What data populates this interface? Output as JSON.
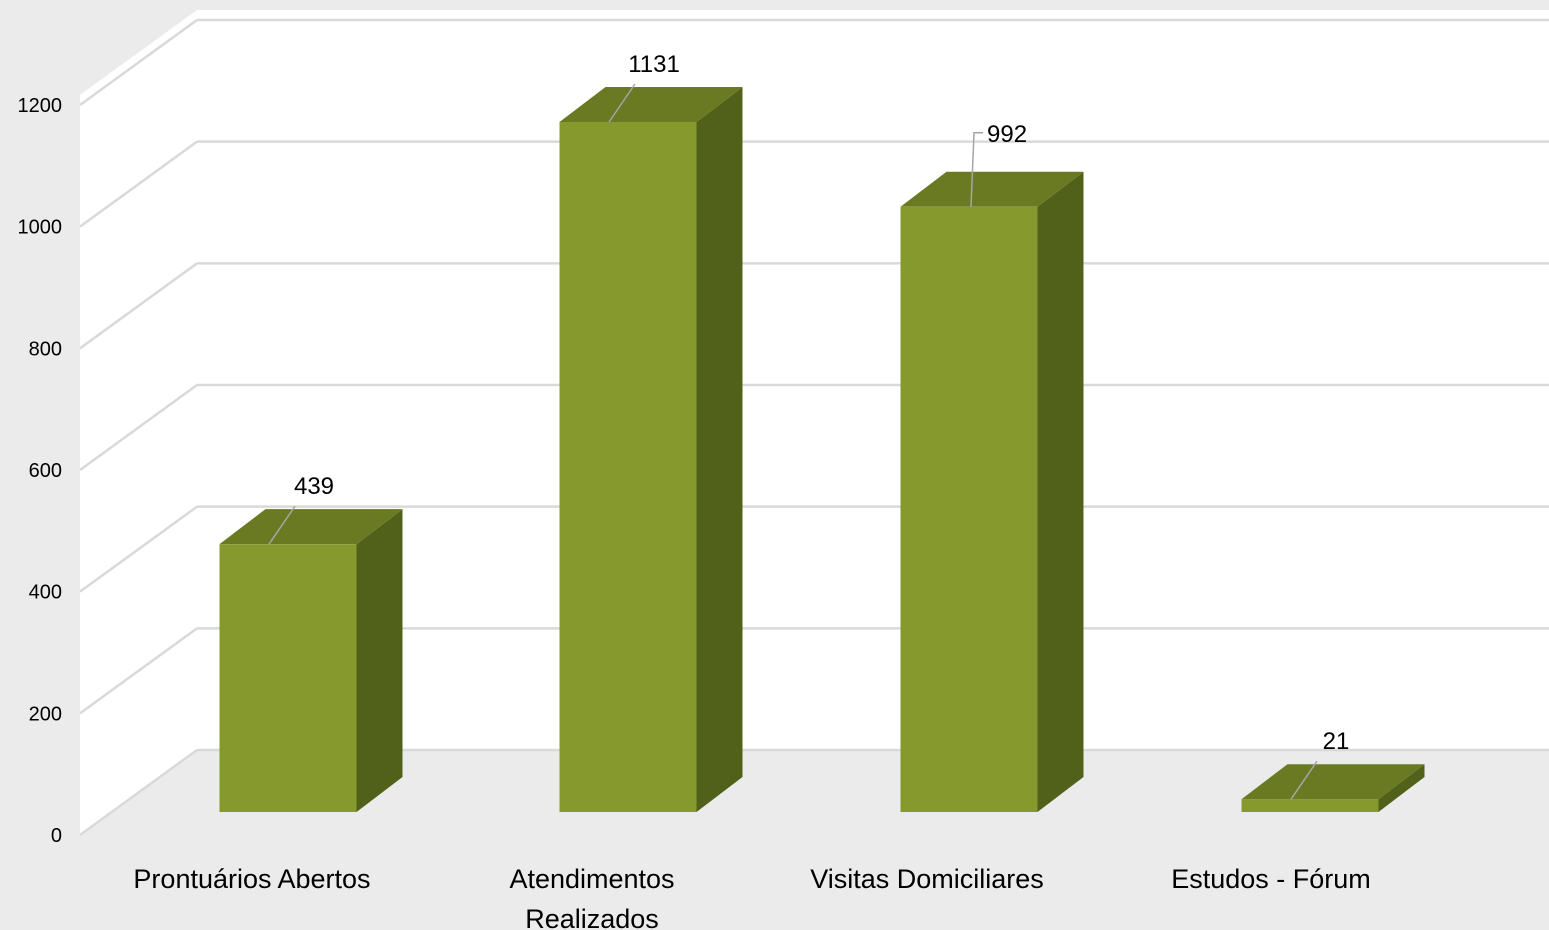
{
  "chart_data": {
    "type": "bar",
    "style": "3d-column",
    "categories": [
      "Prontuários Abertos",
      "Atendimentos Realizados",
      "Visitas Domiciliares",
      "Estudos - Fórum"
    ],
    "category_lines": [
      [
        "Prontuários Abertos"
      ],
      [
        "Atendimentos",
        "Realizados"
      ],
      [
        "Visitas Domiciliares"
      ],
      [
        "Estudos - Fórum"
      ]
    ],
    "values": [
      439,
      1131,
      992,
      21
    ],
    "data_labels": [
      "439",
      "1131",
      "992",
      "21"
    ],
    "ylim": [
      0,
      1200
    ],
    "yticks": [
      0,
      200,
      400,
      600,
      800,
      1000,
      1200
    ],
    "ytick_labels": [
      "0",
      "200",
      "400",
      "600",
      "800",
      "1000",
      "1200"
    ],
    "grid": true,
    "legend": "none",
    "title": "",
    "xlabel": "",
    "ylabel": ""
  },
  "colors": {
    "bar_front": "#86992c",
    "bar_side": "#52611a",
    "bar_top": "#6a7a23",
    "gridline": "#d9d9d9",
    "plot_wall": "#ffffff",
    "leader_line": "#a6a6a6"
  }
}
